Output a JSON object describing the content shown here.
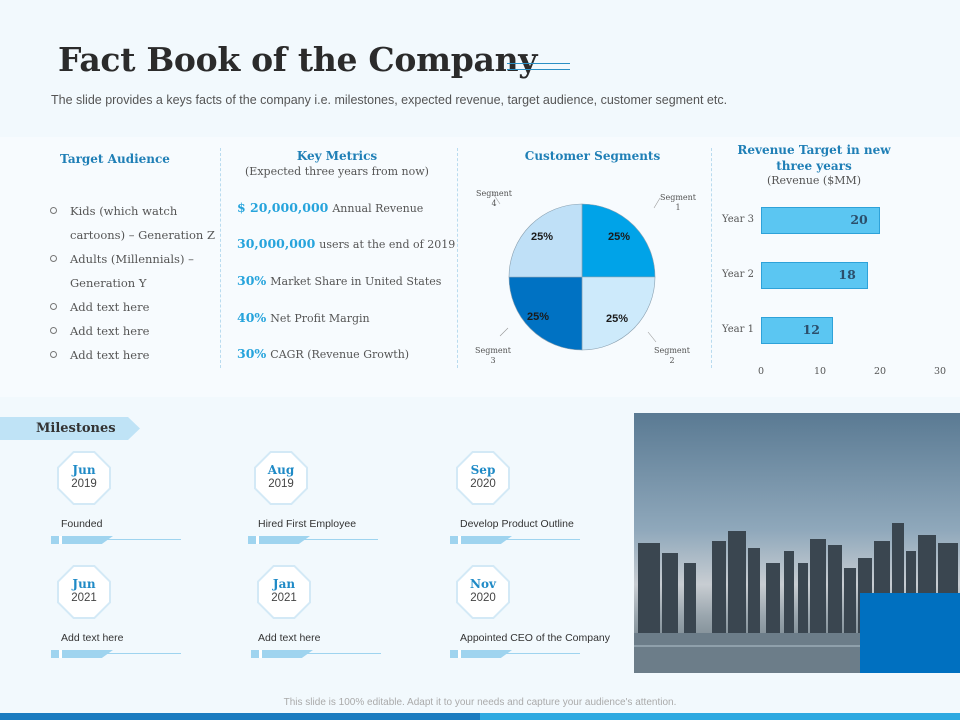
{
  "title": "Fact Book of the Company",
  "subtitle": "The slide provides  a keys facts of the company i.e. milestones, expected revenue,  target audience, customer segment etc.",
  "target_audience": {
    "heading": "Target Audience",
    "items": [
      {
        "line1": "Kids (which watch",
        "line2": "cartoons)  – Generation  Z"
      },
      {
        "line1": "Adults (Millennials) –",
        "line2": "Generation  Y"
      },
      {
        "line1": "Add text here",
        "line2": ""
      },
      {
        "line1": "Add text here",
        "line2": ""
      },
      {
        "line1": "Add text here",
        "line2": ""
      }
    ]
  },
  "key_metrics": {
    "heading": "Key Metrics",
    "subheading": "(Expected three years from now)",
    "rows": [
      {
        "value": "$ 20,000,000",
        "label": "Annual Revenue"
      },
      {
        "value": "30,000,000",
        "label": "users at the end of 2019"
      },
      {
        "value": "30%",
        "label": "Market Share in United States"
      },
      {
        "value": "40%",
        "label": "Net Profit Margin"
      },
      {
        "value": "30%",
        "label": "CAGR (Revenue Growth)"
      }
    ]
  },
  "customer_segments": {
    "heading": "Customer Segments",
    "labels": {
      "s1a": "Segment",
      "s1b": "1",
      "s2a": "Segment",
      "s2b": "2",
      "s3a": "Segment",
      "s3b": "3",
      "s4a": "Segment",
      "s4b": "4"
    }
  },
  "revenue": {
    "heading_line1": "Revenue Target in new",
    "heading_line2": "three years",
    "unit": "(Revenue ($MM)"
  },
  "chart_data": [
    {
      "type": "pie",
      "categories": [
        "Segment 1",
        "Segment 2",
        "Segment 3",
        "Segment 4"
      ],
      "values": [
        25,
        25,
        25,
        25
      ],
      "data_labels": [
        "25%",
        "25%",
        "25%",
        "25%"
      ],
      "colors": [
        "#00a3e8",
        "#cdeafb",
        "#0072c3",
        "#bfe0f7"
      ],
      "title": "Customer Segments"
    },
    {
      "type": "bar",
      "orientation": "horizontal",
      "categories": [
        "Year 1",
        "Year 2",
        "Year 3"
      ],
      "values": [
        12,
        18,
        20
      ],
      "title": "Revenue Target in new three years",
      "ylabel": "(Revenue ($MM)",
      "xlim": [
        0,
        30
      ],
      "x_ticks": [
        "0",
        "10",
        "20",
        "30"
      ],
      "color": "#5bc6f2",
      "grid": false
    }
  ],
  "milestones": {
    "tag": "Milestones",
    "items": [
      {
        "month": "Jun",
        "year": "2019",
        "label": "Founded"
      },
      {
        "month": "Aug",
        "year": "2019",
        "label": "Hired First Employee"
      },
      {
        "month": "Sep",
        "year": "2020",
        "label": "Develop Product Outline"
      },
      {
        "month": "Jun",
        "year": "2021",
        "label": "Add text here"
      },
      {
        "month": "Jan",
        "year": "2021",
        "label": "Add text here"
      },
      {
        "month": "Nov",
        "year": "2020",
        "label": "Appointed CEO  of the Company"
      }
    ]
  },
  "footer": "This slide is 100% editable. Adapt it to your needs and capture your audience's attention.",
  "colors": {
    "accent": "#27a4dc",
    "dark_blue": "#0070c0",
    "background": "#f2f9fd"
  }
}
